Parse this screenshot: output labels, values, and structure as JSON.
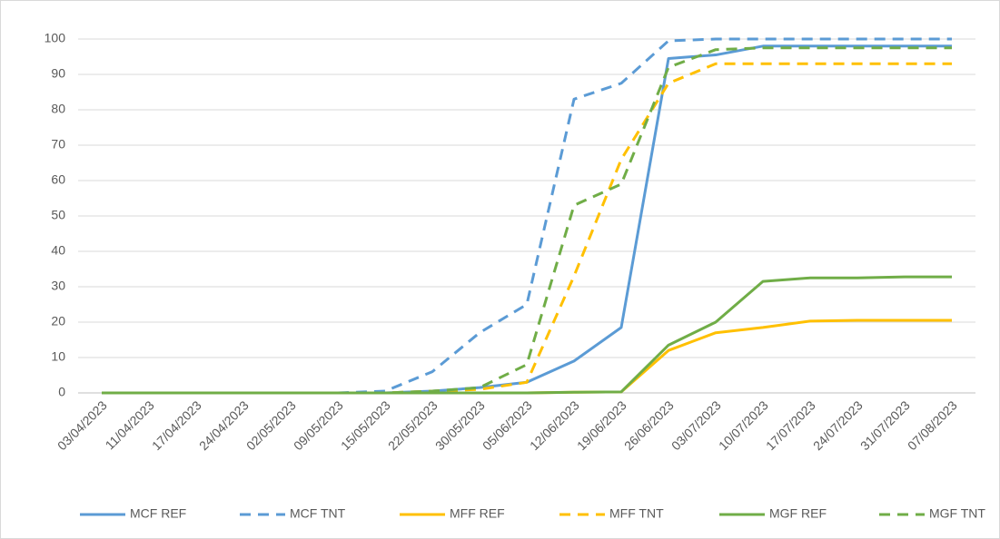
{
  "chart_data": {
    "type": "line",
    "categories": [
      "03/04/2023",
      "11/04/2023",
      "17/04/2023",
      "24/04/2023",
      "02/05/2023",
      "09/05/2023",
      "15/05/2023",
      "22/05/2023",
      "30/05/2023",
      "05/06/2023",
      "12/06/2023",
      "19/06/2023",
      "26/06/2023",
      "03/07/2023",
      "10/07/2023",
      "17/07/2023",
      "24/07/2023",
      "31/07/2023",
      "07/08/2023"
    ],
    "series": [
      {
        "name": "MCF REF",
        "color": "#5b9bd5",
        "dashed": false,
        "values": [
          0,
          0,
          0,
          0,
          0,
          0,
          0,
          0.5,
          1.5,
          3,
          9,
          18.5,
          94.5,
          95.5,
          98,
          98,
          98,
          98,
          98
        ]
      },
      {
        "name": "MCF TNT",
        "color": "#5b9bd5",
        "dashed": true,
        "values": [
          0,
          0,
          0,
          0,
          0,
          0,
          0.5,
          6,
          17,
          25,
          83,
          87.5,
          99.5,
          100,
          100,
          100,
          100,
          100,
          100
        ]
      },
      {
        "name": "MFF REF",
        "color": "#ffc000",
        "dashed": false,
        "values": [
          0,
          0,
          0,
          0,
          0,
          0,
          0,
          0,
          0,
          0,
          0.2,
          0.3,
          12,
          17,
          18.5,
          20.3,
          20.5,
          20.5,
          20.5
        ]
      },
      {
        "name": "MFF TNT",
        "color": "#ffc000",
        "dashed": true,
        "values": [
          0,
          0,
          0,
          0,
          0,
          0,
          0,
          0.5,
          1,
          3,
          33,
          66,
          87.5,
          93,
          93,
          93,
          93,
          93,
          93
        ]
      },
      {
        "name": "MGF REF",
        "color": "#70ad47",
        "dashed": false,
        "values": [
          0,
          0,
          0,
          0,
          0,
          0,
          0,
          0,
          0,
          0,
          0.2,
          0.3,
          13.5,
          20,
          31.5,
          32.5,
          32.5,
          32.8,
          32.8
        ]
      },
      {
        "name": "MGF TNT",
        "color": "#70ad47",
        "dashed": true,
        "values": [
          0,
          0,
          0,
          0,
          0,
          0,
          0,
          0.5,
          1.5,
          8,
          53,
          59,
          92,
          97,
          97.5,
          97.5,
          97.5,
          97.5,
          97.5
        ]
      }
    ],
    "ylim": [
      0,
      100
    ],
    "yticks": [
      0,
      10,
      20,
      30,
      40,
      50,
      60,
      70,
      80,
      90,
      100
    ],
    "grid": true,
    "legend": "bottom"
  }
}
